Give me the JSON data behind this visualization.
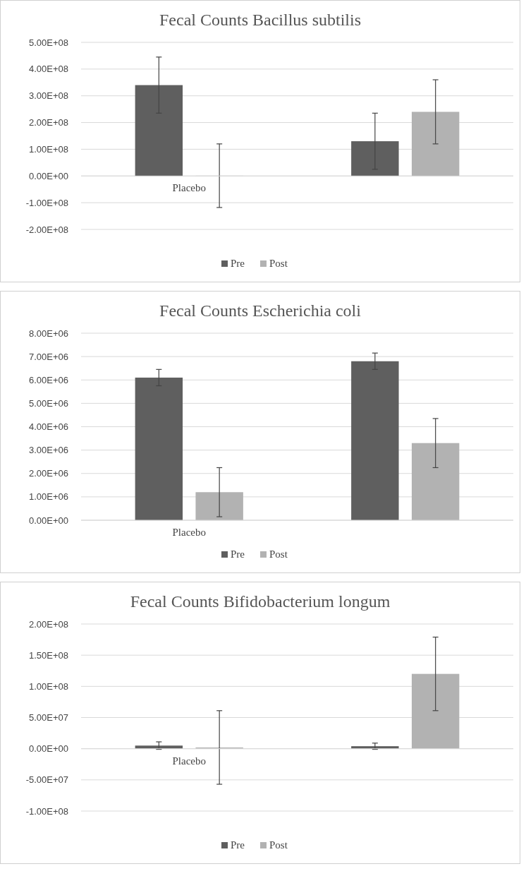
{
  "chart_data": [
    {
      "type": "bar",
      "title": "Fecal Counts Bacillus subtilis",
      "categories": [
        "Placebo",
        null
      ],
      "series": [
        {
          "name": "Pre",
          "color": "#5f5f5f",
          "values": [
            340000000,
            130000000
          ],
          "errors": [
            105000000,
            105000000
          ]
        },
        {
          "name": "Post",
          "color": "#b2b2b2",
          "values": [
            1000000,
            240000000
          ],
          "errors": [
            119000000,
            120000000
          ]
        }
      ],
      "ylim": [
        -200000000,
        500000000
      ],
      "yticks": [
        {
          "value": -200000000,
          "label": "-2.00E+08"
        },
        {
          "value": -100000000,
          "label": "-1.00E+08"
        },
        {
          "value": 0,
          "label": "0.00E+00"
        },
        {
          "value": 100000000,
          "label": "1.00E+08"
        },
        {
          "value": 200000000,
          "label": "2.00E+08"
        },
        {
          "value": 300000000,
          "label": "3.00E+08"
        },
        {
          "value": 400000000,
          "label": "4.00E+08"
        },
        {
          "value": 500000000,
          "label": "5.00E+08"
        }
      ],
      "grid": "y",
      "legend": "bottom"
    },
    {
      "type": "bar",
      "title": "Fecal Counts Escherichia coli",
      "categories": [
        "Placebo",
        null
      ],
      "series": [
        {
          "name": "Pre",
          "color": "#5f5f5f",
          "values": [
            6100000,
            6800000
          ],
          "errors": [
            350000,
            350000
          ]
        },
        {
          "name": "Post",
          "color": "#b2b2b2",
          "values": [
            1200000,
            3300000
          ],
          "errors": [
            1050000,
            1050000
          ]
        }
      ],
      "ylim": [
        0,
        8000000
      ],
      "yticks": [
        {
          "value": 0,
          "label": "0.00E+00"
        },
        {
          "value": 1000000,
          "label": "1.00E+06"
        },
        {
          "value": 2000000,
          "label": "2.00E+06"
        },
        {
          "value": 3000000,
          "label": "3.00E+06"
        },
        {
          "value": 4000000,
          "label": "4.00E+06"
        },
        {
          "value": 5000000,
          "label": "5.00E+06"
        },
        {
          "value": 6000000,
          "label": "6.00E+06"
        },
        {
          "value": 7000000,
          "label": "7.00E+06"
        },
        {
          "value": 8000000,
          "label": "8.00E+06"
        }
      ],
      "grid": "y",
      "legend": "bottom"
    },
    {
      "type": "bar",
      "title": "Fecal Counts Bifidobacterium longum",
      "categories": [
        "Placebo",
        null
      ],
      "series": [
        {
          "name": "Pre",
          "color": "#5f5f5f",
          "values": [
            5000000,
            4000000
          ],
          "errors": [
            6000000,
            5000000
          ]
        },
        {
          "name": "Post",
          "color": "#b2b2b2",
          "values": [
            2000000,
            120000000
          ],
          "errors": [
            59000000,
            59000000
          ]
        }
      ],
      "ylim": [
        -100000000,
        200000000
      ],
      "yticks": [
        {
          "value": -100000000,
          "label": "-1.00E+08"
        },
        {
          "value": -50000000,
          "label": "-5.00E+07"
        },
        {
          "value": 0,
          "label": "0.00E+00"
        },
        {
          "value": 50000000,
          "label": "5.00E+07"
        },
        {
          "value": 100000000,
          "label": "1.00E+08"
        },
        {
          "value": 150000000,
          "label": "1.50E+08"
        },
        {
          "value": 200000000,
          "label": "2.00E+08"
        }
      ],
      "grid": "y",
      "legend": "bottom"
    }
  ]
}
